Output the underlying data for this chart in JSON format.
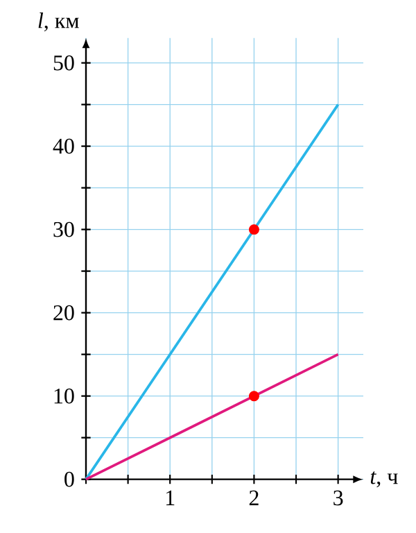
{
  "chart_data": {
    "type": "line",
    "xlabel": "*t*, ч",
    "ylabel": "*l*, км",
    "xlim": [
      0,
      3.3
    ],
    "ylim": [
      0,
      53
    ],
    "xticks": [
      {
        "value": 0,
        "label": null
      },
      {
        "value": 0.5,
        "label": null
      },
      1,
      {
        "value": 1.5,
        "label": null
      },
      2,
      {
        "value": 2.5,
        "label": null
      },
      3
    ],
    "yticks": [
      0,
      {
        "value": 5,
        "label": null
      },
      10,
      {
        "value": 15,
        "label": null
      },
      20,
      {
        "value": 25,
        "label": null
      },
      30,
      {
        "value": 35,
        "label": null
      },
      40,
      {
        "value": 45,
        "label": null
      },
      50
    ],
    "grid": true,
    "series": [
      {
        "color": "#29b6e8",
        "x": [
          0,
          3
        ],
        "values": [
          0,
          45
        ]
      },
      {
        "color": "#e0197d",
        "x": [
          0,
          3
        ],
        "values": [
          0,
          15
        ]
      },
      {
        "type": "scatter",
        "marker": "circle",
        "color": "#ff0000",
        "x": [
          2,
          2
        ],
        "values": [
          30,
          10
        ]
      }
    ]
  }
}
